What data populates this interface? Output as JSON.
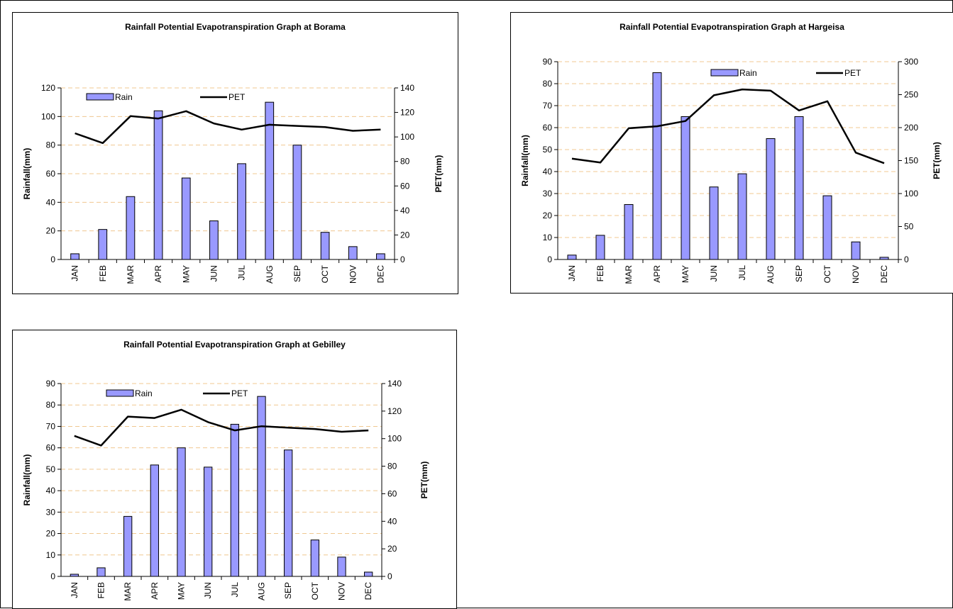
{
  "chart_data": [
    {
      "id": "borama",
      "type": "bar",
      "title": "Rainfall Potential Evapotranspiration Graph at Borama",
      "categories": [
        "JAN",
        "FEB",
        "MAR",
        "APR",
        "MAY",
        "JUN",
        "JUL",
        "AUG",
        "SEP",
        "OCT",
        "NOV",
        "DEC"
      ],
      "series": [
        {
          "name": "Rain",
          "type": "bar",
          "axis": "left",
          "color": "#9999ff",
          "values": [
            4,
            21,
            44,
            104,
            57,
            27,
            67,
            110,
            80,
            19,
            9,
            4
          ]
        },
        {
          "name": "PET",
          "type": "line",
          "axis": "right",
          "color": "#000000",
          "values": [
            103,
            95,
            117,
            115,
            121,
            111,
            106,
            110,
            109,
            108,
            105,
            106
          ]
        }
      ],
      "ylabel": "Rainfall(mm)",
      "y2label": "PET(mm)",
      "ylim": [
        0,
        120
      ],
      "yticks": [
        0,
        20,
        40,
        60,
        80,
        100,
        120
      ],
      "y2lim": [
        0,
        140
      ],
      "y2ticks": [
        0,
        20,
        40,
        60,
        80,
        100,
        120,
        140
      ],
      "grid": true,
      "legend": "top"
    },
    {
      "id": "hargeisa",
      "type": "bar",
      "title": "Rainfall Potential Evapotranspiration Graph at Hargeisa",
      "categories": [
        "JAN",
        "FEB",
        "MAR",
        "APR",
        "MAY",
        "JUN",
        "JUL",
        "AUG",
        "SEP",
        "OCT",
        "NOV",
        "DEC"
      ],
      "series": [
        {
          "name": "Rain",
          "type": "bar",
          "axis": "left",
          "color": "#9999ff",
          "values": [
            2,
            11,
            25,
            85,
            65,
            33,
            39,
            55,
            65,
            29,
            8,
            1
          ]
        },
        {
          "name": "PET",
          "type": "line",
          "axis": "right",
          "color": "#000000",
          "values": [
            153,
            147,
            199,
            202,
            210,
            249,
            258,
            256,
            226,
            240,
            162,
            146
          ]
        }
      ],
      "ylabel": "Rainfall(mm)",
      "y2label": "PET(mm)",
      "ylim": [
        0,
        90
      ],
      "yticks": [
        0,
        10,
        20,
        30,
        40,
        50,
        60,
        70,
        80,
        90
      ],
      "y2lim": [
        0,
        300
      ],
      "y2ticks": [
        0,
        50,
        100,
        150,
        200,
        250,
        300
      ],
      "grid": true,
      "legend": "top"
    },
    {
      "id": "gebilley",
      "type": "bar",
      "title": "Rainfall Potential Evapotranspiration Graph at Gebilley",
      "categories": [
        "JAN",
        "FEB",
        "MAR",
        "APR",
        "MAY",
        "JUN",
        "JUL",
        "AUG",
        "SEP",
        "OCT",
        "NOV",
        "DEC"
      ],
      "series": [
        {
          "name": "Rain",
          "type": "bar",
          "axis": "left",
          "color": "#9999ff",
          "values": [
            1,
            4,
            28,
            52,
            60,
            51,
            71,
            84,
            59,
            17,
            9,
            2
          ]
        },
        {
          "name": "PET",
          "type": "line",
          "axis": "right",
          "color": "#000000",
          "values": [
            102,
            95,
            116,
            115,
            121,
            112,
            106,
            109,
            108,
            107,
            105,
            106
          ]
        }
      ],
      "ylabel": "Rainfall(mm)",
      "y2label": "PET(mm)",
      "ylim": [
        0,
        90
      ],
      "yticks": [
        0,
        10,
        20,
        30,
        40,
        50,
        60,
        70,
        80,
        90
      ],
      "y2lim": [
        0,
        140
      ],
      "y2ticks": [
        0,
        20,
        40,
        60,
        80,
        100,
        120,
        140
      ],
      "grid": true,
      "legend": "top"
    }
  ],
  "colors": {
    "bar_fill": "#9999ff",
    "bar_stroke": "#000000",
    "grid": "#f0c890",
    "line": "#000000"
  }
}
